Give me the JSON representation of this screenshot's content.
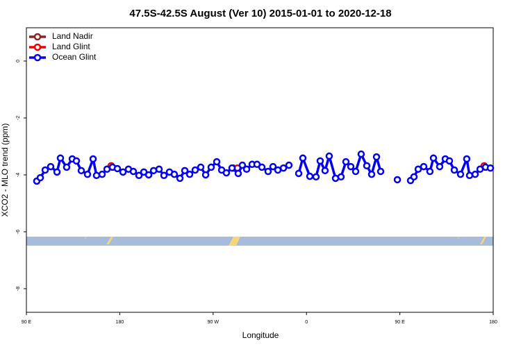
{
  "chart_data": {
    "type": "line",
    "title": "47.5S-42.5S August (Ver 10)   2015-01-01 to 2020-12-18",
    "xlabel": "Longitude",
    "ylabel": "XCO2 - MLO trend (ppm)",
    "xlim": [
      90,
      540
    ],
    "ylim": [
      -8.83,
      1.17
    ],
    "xticks": [
      {
        "value": 90,
        "label": "90 E"
      },
      180,
      {
        "value": 270,
        "label": "90 W"
      },
      {
        "value": 360,
        "label": "0"
      },
      {
        "value": 450,
        "label": "90 E"
      },
      {
        "value": 540,
        "label": "180"
      }
    ],
    "yticks": [
      0,
      -2,
      -4,
      -6,
      -8
    ],
    "legend": "top-left",
    "series": [
      {
        "name": "Land Nadir",
        "color": "#8b2323",
        "x": [],
        "values": []
      },
      {
        "name": "Land Glint",
        "color": "#ee0000",
        "x": [
          171.7,
          null,
          289.5,
          293.5,
          null,
          531.3
        ],
        "values": [
          -3.68,
          null,
          -3.76,
          -3.76,
          null,
          -3.68
        ]
      },
      {
        "name": "Ocean Glint",
        "color": "#0000ee",
        "x": [
          100.0,
          103.4,
          108.1,
          113.4,
          119.5,
          122.8,
          128.8,
          134.2,
          138.2,
          142.9,
          148.9,
          154.3,
          157.6,
          163.0,
          167.7,
          173.0,
          177.7,
          183.1,
          188.4,
          193.1,
          198.5,
          203.2,
          207.9,
          212.6,
          217.9,
          222.6,
          227.9,
          232.6,
          238.0,
          242.7,
          247.4,
          252.7,
          258.1,
          262.8,
          268.1,
          273.5,
          278.2,
          282.8,
          288.2,
          294.2,
          298.2,
          302.3,
          307.6,
          312.3,
          317.0,
          323.0,
          327.7,
          332.4,
          337.8,
          343.1,
          null,
          352.5,
          356.5,
          363.2,
          369.2,
          373.2,
          377.9,
          381.9,
          388.0,
          393.3,
          398.0,
          402.7,
          407.4,
          412.7,
          418.1,
          422.8,
          427.5,
          431.5,
          null,
          447.6,
          null,
          460.3,
          463.6,
          467.7,
          473.0,
          479.0,
          482.4,
          488.4,
          493.8,
          497.8,
          502.5,
          508.5,
          514.5,
          517.2,
          522.6,
          527.3,
          532.6,
          537.3
        ],
        "values": [
          -4.22,
          -4.1,
          -3.83,
          -3.71,
          -3.9,
          -3.41,
          -3.73,
          -3.44,
          -3.51,
          -3.85,
          -3.98,
          -3.44,
          -4.02,
          -3.98,
          -3.8,
          -3.73,
          -3.78,
          -3.9,
          -3.8,
          -3.88,
          -4.02,
          -3.9,
          -4.0,
          -3.85,
          -3.8,
          -4.02,
          -3.9,
          -3.98,
          -4.12,
          -3.85,
          -3.98,
          -3.83,
          -3.73,
          -4.0,
          -3.73,
          -3.54,
          -3.83,
          -3.93,
          -3.76,
          -3.95,
          -3.66,
          -3.8,
          -3.63,
          -3.63,
          -3.73,
          -3.88,
          -3.71,
          -3.83,
          -3.76,
          -3.66,
          null,
          -3.95,
          -3.41,
          -4.05,
          -4.07,
          -3.51,
          -3.85,
          -3.34,
          -4.12,
          -4.07,
          -3.54,
          -3.71,
          -3.88,
          -3.27,
          -3.68,
          -3.98,
          -3.37,
          -3.88,
          null,
          -4.17,
          null,
          -4.2,
          -4.07,
          -3.8,
          -3.71,
          -3.88,
          -3.41,
          -3.71,
          -3.44,
          -3.51,
          -3.83,
          -3.98,
          -3.44,
          -4.02,
          -3.98,
          -3.8,
          -3.73,
          -3.76
        ]
      }
    ]
  }
}
